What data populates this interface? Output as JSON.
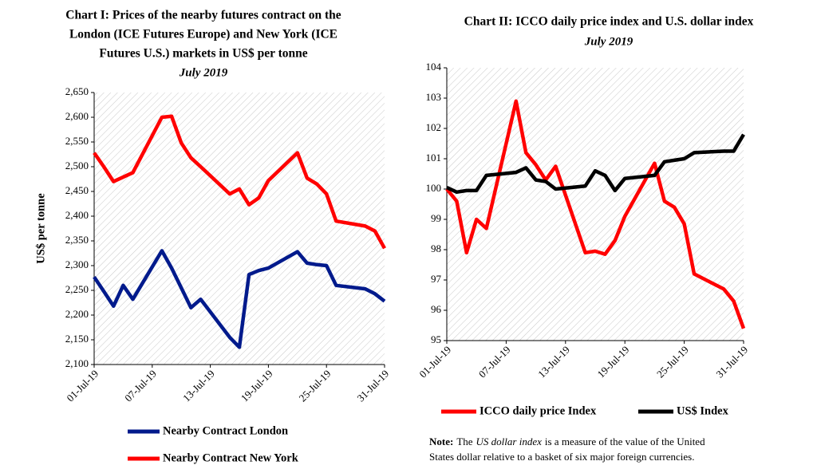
{
  "chart_data": [
    {
      "type": "line",
      "title": [
        "Chart I: Prices of the nearby futures contract on the",
        "London (ICE Futures Europe) and New York (ICE",
        "Futures U.S.) markets in US$ per tonne"
      ],
      "subtitle": "July 2019",
      "ylabel": "US$ per tonne",
      "xlim": [
        1,
        31
      ],
      "xticks": [
        {
          "value": 1,
          "label": "01-Jul-19"
        },
        {
          "value": 7,
          "label": "07-Jul-19"
        },
        {
          "value": 13,
          "label": "13-Jul-19"
        },
        {
          "value": 19,
          "label": "19-Jul-19"
        },
        {
          "value": 25,
          "label": "25-Jul-19"
        },
        {
          "value": 31,
          "label": "31-Jul-19"
        }
      ],
      "ylim": [
        2100,
        2650
      ],
      "yticks": [
        {
          "value": 2100,
          "label": "2,100"
        },
        {
          "value": 2150,
          "label": "2,150"
        },
        {
          "value": 2200,
          "label": "2,200"
        },
        {
          "value": 2250,
          "label": "2,250"
        },
        {
          "value": 2300,
          "label": "2,300"
        },
        {
          "value": 2350,
          "label": "2,350"
        },
        {
          "value": 2400,
          "label": "2,400"
        },
        {
          "value": 2450,
          "label": "2,450"
        },
        {
          "value": 2500,
          "label": "2,500"
        },
        {
          "value": 2550,
          "label": "2,550"
        },
        {
          "value": 2600,
          "label": "2,600"
        },
        {
          "value": 2650,
          "label": "2,650"
        }
      ],
      "grid": false,
      "legend": "bottom",
      "series": [
        {
          "name": "Nearby Contract London",
          "color": "#001a8c",
          "x": [
            1,
            2,
            3,
            4,
            5,
            8,
            9,
            10,
            11,
            12,
            15,
            16,
            17,
            18,
            19,
            22,
            23,
            24,
            25,
            26,
            29,
            30,
            31
          ],
          "values": [
            2277,
            2248,
            2218,
            2260,
            2232,
            2330,
            2295,
            2255,
            2215,
            2232,
            2155,
            2135,
            2282,
            2290,
            2295,
            2328,
            2305,
            2302,
            2300,
            2260,
            2253,
            2243,
            2228
          ]
        },
        {
          "name": "Nearby Contract New York",
          "color": "#ff0000",
          "x": [
            1,
            2,
            3,
            5,
            8,
            9,
            10,
            11,
            12,
            15,
            16,
            17,
            18,
            19,
            22,
            23,
            24,
            25,
            26,
            29,
            30,
            31
          ],
          "values": [
            2528,
            2500,
            2470,
            2488,
            2600,
            2602,
            2548,
            2518,
            2500,
            2445,
            2455,
            2423,
            2437,
            2472,
            2528,
            2477,
            2465,
            2445,
            2390,
            2380,
            2370,
            2335
          ]
        }
      ]
    },
    {
      "type": "line",
      "title": [
        "Chart II: ICCO daily price index and U.S. dollar index"
      ],
      "subtitle": "July 2019",
      "xlim": [
        1,
        31
      ],
      "xticks": [
        {
          "value": 1,
          "label": "01-Jul-19"
        },
        {
          "value": 7,
          "label": "07-Jul-19"
        },
        {
          "value": 13,
          "label": "13-Jul-19"
        },
        {
          "value": 19,
          "label": "19-Jul-19"
        },
        {
          "value": 25,
          "label": "25-Jul-19"
        },
        {
          "value": 31,
          "label": "31-Jul-19"
        }
      ],
      "ylim": [
        95,
        104
      ],
      "yticks": [
        95,
        96,
        97,
        98,
        99,
        100,
        101,
        102,
        103,
        104
      ],
      "grid": false,
      "legend": "bottom",
      "series": [
        {
          "name": "ICCO daily price Index",
          "color": "#ff0000",
          "x": [
            1,
            2,
            3,
            4,
            5,
            8,
            9,
            10,
            11,
            12,
            15,
            16,
            17,
            18,
            19,
            22,
            23,
            24,
            25,
            26,
            29,
            30,
            31
          ],
          "values": [
            100.0,
            99.6,
            97.9,
            99.0,
            98.7,
            102.9,
            101.2,
            100.8,
            100.3,
            100.75,
            97.9,
            97.95,
            97.85,
            98.3,
            99.1,
            100.85,
            99.6,
            99.4,
            98.85,
            97.2,
            96.7,
            96.3,
            95.4
          ]
        },
        {
          "name": "US$ Index",
          "color": "#000000",
          "x": [
            1,
            2,
            3,
            4,
            5,
            8,
            9,
            10,
            11,
            12,
            15,
            16,
            17,
            18,
            19,
            22,
            23,
            24,
            25,
            26,
            29,
            30,
            31
          ],
          "values": [
            100.05,
            99.9,
            99.95,
            99.95,
            100.45,
            100.55,
            100.7,
            100.3,
            100.25,
            100.0,
            100.1,
            100.6,
            100.45,
            99.95,
            100.35,
            100.45,
            100.9,
            100.95,
            101.0,
            101.2,
            101.25,
            101.25,
            101.8
          ]
        }
      ],
      "note": {
        "label": "Note:",
        "lead": "The",
        "term": "US dollar index",
        "lines": [
          "is a measure of the value of the United",
          "States dollar relative to a basket of six major foreign currencies."
        ]
      }
    }
  ]
}
